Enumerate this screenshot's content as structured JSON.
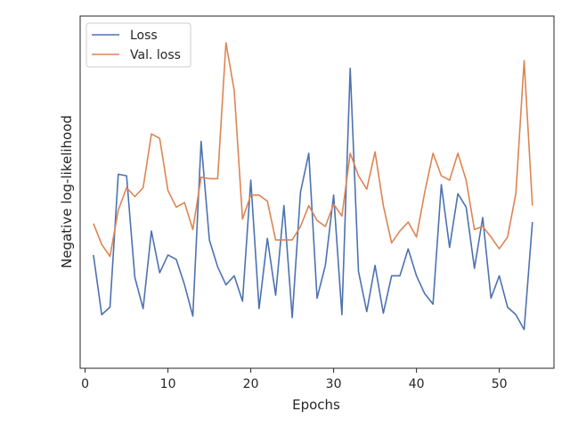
{
  "chart_data": {
    "type": "line",
    "title": "",
    "xlabel": "Epochs",
    "ylabel": "Negative log-likelihood",
    "xlim": [
      -0.6,
      56.6
    ],
    "ylim": [
      0,
      100
    ],
    "xticks": [
      0,
      10,
      20,
      30,
      40,
      50
    ],
    "y_tick_labels_shown": false,
    "grid": false,
    "legend_position": "top-left",
    "series": [
      {
        "name": "Loss",
        "color": "#4c72b0",
        "x": [
          1,
          2,
          3,
          4,
          5,
          6,
          7,
          8,
          9,
          10,
          11,
          12,
          13,
          14,
          15,
          16,
          17,
          18,
          19,
          20,
          21,
          22,
          23,
          24,
          25,
          26,
          27,
          28,
          29,
          30,
          31,
          32,
          33,
          34,
          35,
          36,
          37,
          38,
          39,
          40,
          41,
          42,
          43,
          44,
          45,
          46,
          47,
          48,
          49,
          50,
          51,
          52,
          53,
          54
        ],
        "values": [
          29,
          9,
          11.5,
          56,
          55.5,
          21.5,
          11,
          37,
          23,
          29,
          27.5,
          19,
          8.5,
          67,
          34,
          25,
          19,
          22,
          13.5,
          54,
          11,
          34.5,
          15.5,
          45.5,
          8,
          50,
          63,
          14.5,
          25.5,
          49,
          9,
          91.5,
          23.5,
          10,
          25.5,
          9.5,
          22,
          22,
          31,
          22,
          16,
          12.5,
          52.5,
          31.5,
          49.5,
          45,
          24.5,
          41.5,
          14.5,
          22,
          11.5,
          9,
          4,
          40
        ]
      },
      {
        "name": "Val. loss",
        "color": "#dd8452",
        "x": [
          1,
          2,
          3,
          4,
          5,
          6,
          7,
          8,
          9,
          10,
          11,
          12,
          13,
          14,
          15,
          16,
          17,
          18,
          19,
          20,
          21,
          22,
          23,
          24,
          25,
          26,
          27,
          28,
          29,
          30,
          31,
          32,
          33,
          34,
          35,
          36,
          37,
          38,
          39,
          40,
          41,
          42,
          43,
          44,
          45,
          46,
          47,
          48,
          49,
          50,
          51,
          52,
          53,
          54
        ],
        "values": [
          39.5,
          32.5,
          28.5,
          44,
          51.5,
          48.5,
          51.5,
          69.5,
          68,
          50.5,
          45,
          46.5,
          37.5,
          55,
          54.5,
          54.5,
          100,
          84,
          41,
          49,
          49,
          47,
          34,
          34,
          34,
          38.5,
          45.5,
          40.5,
          38.5,
          46,
          42,
          63,
          55.5,
          51,
          63.5,
          45.5,
          33,
          37,
          40,
          35,
          50,
          63,
          55.5,
          54,
          63,
          54,
          37.5,
          38.5,
          35,
          31,
          35,
          49.5,
          94,
          45.5
        ]
      }
    ]
  }
}
